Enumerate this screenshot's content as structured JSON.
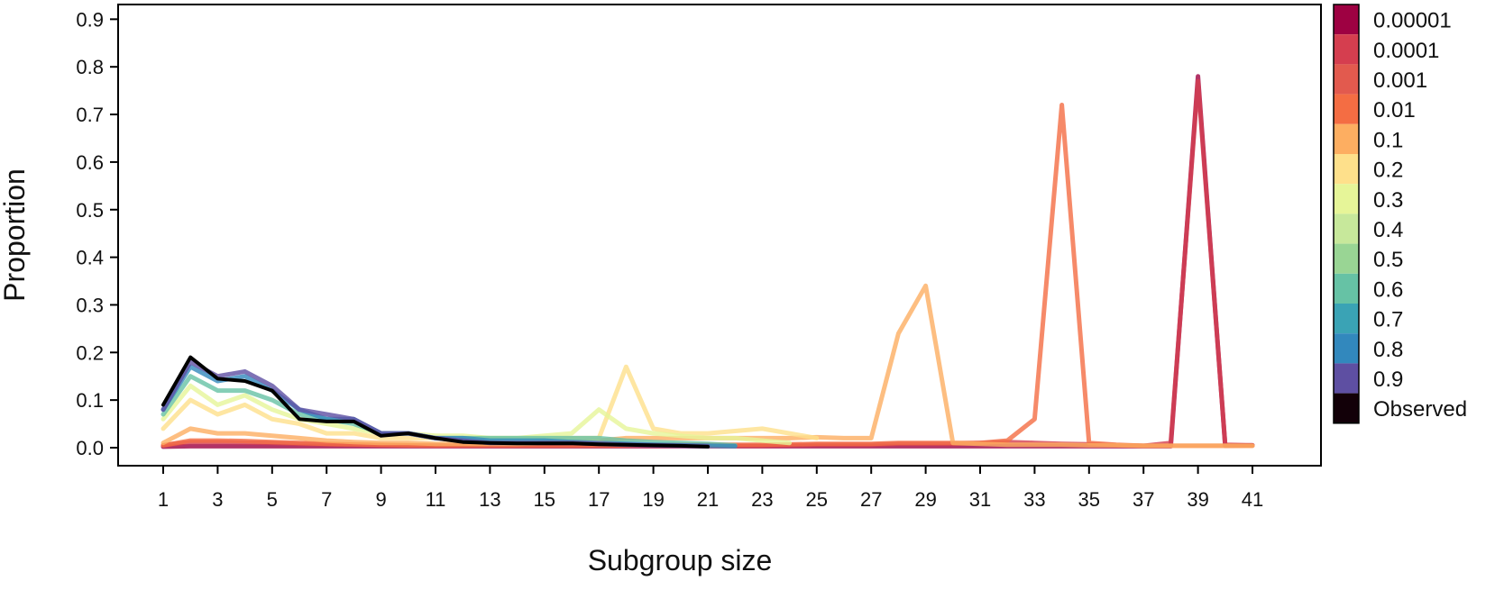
{
  "chart_data": {
    "type": "line",
    "xlabel": "Subgroup size",
    "ylabel": "Proportion",
    "xlim": [
      0,
      43
    ],
    "ylim": [
      0,
      0.9
    ],
    "x_ticks": [
      1,
      3,
      5,
      7,
      9,
      11,
      13,
      15,
      17,
      19,
      21,
      23,
      25,
      27,
      29,
      31,
      33,
      35,
      37,
      39,
      41
    ],
    "y_ticks": [
      "0.0",
      "0.1",
      "0.2",
      "0.3",
      "0.4",
      "0.5",
      "0.6",
      "0.7",
      "0.8",
      "0.9"
    ],
    "grid": false,
    "legend_position": "right",
    "series": [
      {
        "name": "0.00001",
        "color": "#9e0142",
        "x": [
          1,
          2,
          3,
          4,
          5,
          6,
          7,
          8,
          9,
          10,
          11,
          12,
          13,
          14,
          15,
          16,
          17,
          18,
          19,
          20,
          21,
          22,
          23,
          24,
          25,
          26,
          27,
          28,
          29,
          30,
          31,
          32,
          33,
          34,
          35,
          36,
          37,
          38,
          39,
          40,
          41
        ],
        "values": [
          0.002,
          0.003,
          0.003,
          0.003,
          0.003,
          0.003,
          0.003,
          0.003,
          0.003,
          0.003,
          0.003,
          0.003,
          0.003,
          0.003,
          0.003,
          0.003,
          0.003,
          0.003,
          0.003,
          0.003,
          0.003,
          0.003,
          0.003,
          0.003,
          0.003,
          0.003,
          0.003,
          0.003,
          0.003,
          0.003,
          0.003,
          0.003,
          0.003,
          0.003,
          0.003,
          0.003,
          0.003,
          0.003,
          0.78,
          0.004,
          0.005
        ]
      },
      {
        "name": "0.0001",
        "color": "#d53e4f",
        "x": [
          1,
          2,
          3,
          4,
          5,
          6,
          7,
          8,
          9,
          10,
          11,
          12,
          13,
          14,
          15,
          16,
          17,
          18,
          19,
          20,
          21,
          22,
          23,
          24,
          25,
          26,
          27,
          28,
          29,
          30,
          31,
          32,
          33,
          34,
          35,
          36,
          37,
          38,
          39,
          40,
          41
        ],
        "values": [
          0.005,
          0.012,
          0.012,
          0.011,
          0.01,
          0.008,
          0.007,
          0.006,
          0.005,
          0.005,
          0.004,
          0.004,
          0.004,
          0.004,
          0.004,
          0.004,
          0.004,
          0.004,
          0.004,
          0.004,
          0.004,
          0.004,
          0.004,
          0.005,
          0.006,
          0.006,
          0.006,
          0.008,
          0.008,
          0.008,
          0.01,
          0.012,
          0.01,
          0.008,
          0.007,
          0.005,
          0.004,
          0.01,
          0.77,
          0.006,
          0.005
        ]
      },
      {
        "name": "0.001",
        "color": "#f46d43",
        "x": [
          1,
          2,
          3,
          4,
          5,
          6,
          7,
          8,
          9,
          10,
          11,
          12,
          13,
          14,
          15,
          16,
          17,
          18,
          19,
          20,
          21,
          22,
          23,
          24,
          25,
          26,
          27,
          28,
          29,
          30,
          31,
          32,
          33,
          34,
          35,
          36,
          37,
          38,
          39,
          40,
          41
        ],
        "values": [
          0.005,
          0.015,
          0.015,
          0.014,
          0.012,
          0.01,
          0.008,
          0.007,
          0.006,
          0.005,
          0.005,
          0.005,
          0.005,
          0.005,
          0.005,
          0.005,
          0.005,
          0.005,
          0.006,
          0.006,
          0.006,
          0.006,
          0.006,
          0.007,
          0.008,
          0.008,
          0.008,
          0.01,
          0.01,
          0.01,
          0.01,
          0.015,
          0.06,
          0.72,
          0.01,
          0.006,
          0.004,
          0.004,
          0.004,
          0.004,
          0.004
        ]
      },
      {
        "name": "0.01",
        "color": "#fdae61",
        "x": [
          1,
          2,
          3,
          4,
          5,
          6,
          7,
          8,
          9,
          10,
          11,
          12,
          13,
          14,
          15,
          16,
          17,
          18,
          19,
          20,
          21,
          22,
          23,
          24,
          25,
          26,
          27,
          28,
          29,
          30,
          31,
          32,
          33,
          34,
          35,
          36,
          37,
          38,
          39,
          40,
          41
        ],
        "values": [
          0.01,
          0.04,
          0.03,
          0.03,
          0.025,
          0.02,
          0.015,
          0.012,
          0.01,
          0.01,
          0.008,
          0.008,
          0.008,
          0.008,
          0.01,
          0.012,
          0.015,
          0.02,
          0.02,
          0.02,
          0.02,
          0.02,
          0.02,
          0.02,
          0.022,
          0.02,
          0.02,
          0.24,
          0.34,
          0.01,
          0.008,
          0.006,
          0.006,
          0.006,
          0.005,
          0.005,
          0.004,
          0.004,
          0.004,
          0.004,
          0.004
        ]
      },
      {
        "name": "0.1",
        "color": "#fee08b",
        "x": [
          1,
          2,
          3,
          4,
          5,
          6,
          7,
          8,
          9,
          10,
          11,
          12,
          13,
          14,
          15,
          16,
          17,
          18,
          19,
          20,
          21,
          22,
          23,
          24,
          25
        ],
        "values": [
          0.04,
          0.1,
          0.07,
          0.09,
          0.06,
          0.05,
          0.03,
          0.03,
          0.02,
          0.02,
          0.02,
          0.02,
          0.02,
          0.02,
          0.02,
          0.02,
          0.02,
          0.17,
          0.04,
          0.03,
          0.03,
          0.035,
          0.04,
          0.03,
          0.02
        ]
      },
      {
        "name": "0.3",
        "color": "#e6f598",
        "x": [
          1,
          2,
          3,
          4,
          5,
          6,
          7,
          8,
          9,
          10,
          11,
          12,
          13,
          14,
          15,
          16,
          17,
          18,
          19,
          20,
          21,
          22,
          23,
          24
        ],
        "values": [
          0.06,
          0.13,
          0.09,
          0.11,
          0.08,
          0.06,
          0.05,
          0.04,
          0.03,
          0.03,
          0.025,
          0.025,
          0.02,
          0.02,
          0.025,
          0.03,
          0.08,
          0.04,
          0.03,
          0.025,
          0.02,
          0.02,
          0.015,
          0.01
        ]
      },
      {
        "name": "0.5",
        "color": "#66c2a5",
        "x": [
          1,
          2,
          3,
          4,
          5,
          6,
          7,
          8,
          9,
          10,
          11,
          12,
          13,
          14,
          15,
          16,
          17,
          18,
          19,
          20,
          21,
          22
        ],
        "values": [
          0.07,
          0.15,
          0.12,
          0.12,
          0.1,
          0.07,
          0.06,
          0.05,
          0.03,
          0.03,
          0.02,
          0.02,
          0.02,
          0.02,
          0.02,
          0.02,
          0.02,
          0.015,
          0.012,
          0.01,
          0.008,
          0.005
        ]
      },
      {
        "name": "0.7",
        "color": "#3288bd",
        "x": [
          1,
          2,
          3,
          4,
          5,
          6,
          7,
          8,
          9,
          10,
          11,
          12,
          13,
          14,
          15,
          16,
          17,
          18,
          19,
          20,
          21,
          22
        ],
        "values": [
          0.08,
          0.17,
          0.14,
          0.15,
          0.12,
          0.08,
          0.06,
          0.06,
          0.03,
          0.03,
          0.02,
          0.02,
          0.015,
          0.015,
          0.015,
          0.012,
          0.01,
          0.008,
          0.006,
          0.005,
          0.004,
          0.003
        ]
      },
      {
        "name": "0.9",
        "color": "#5e4fa2",
        "x": [
          1,
          2,
          3,
          4,
          5,
          6,
          7,
          8,
          9,
          10,
          11,
          12,
          13,
          14,
          15,
          16,
          17,
          18,
          19,
          20,
          21
        ],
        "values": [
          0.08,
          0.18,
          0.15,
          0.16,
          0.13,
          0.08,
          0.07,
          0.06,
          0.03,
          0.03,
          0.02,
          0.015,
          0.01,
          0.01,
          0.01,
          0.01,
          0.008,
          0.006,
          0.005,
          0.004,
          0.003
        ]
      },
      {
        "name": "Observed",
        "color": "#000000",
        "x": [
          1,
          2,
          3,
          4,
          5,
          6,
          7,
          8,
          9,
          10,
          11,
          12,
          13,
          14,
          15,
          16,
          17,
          18,
          19,
          20,
          21
        ],
        "values": [
          0.09,
          0.19,
          0.145,
          0.14,
          0.12,
          0.06,
          0.055,
          0.055,
          0.025,
          0.03,
          0.02,
          0.012,
          0.01,
          0.009,
          0.009,
          0.009,
          0.007,
          0.006,
          0.005,
          0.004,
          0.002
        ]
      }
    ],
    "legend": [
      {
        "label": "0.00001",
        "color": "#9e0142"
      },
      {
        "label": "0.0001",
        "color": "#d53e4f"
      },
      {
        "label": "0.001",
        "color": "#e25a4e"
      },
      {
        "label": "0.01",
        "color": "#f46d43"
      },
      {
        "label": "0.1",
        "color": "#fdae61"
      },
      {
        "label": "0.2",
        "color": "#fee08b"
      },
      {
        "label": "0.3",
        "color": "#e6f598"
      },
      {
        "label": "0.4",
        "color": "#c7e89b"
      },
      {
        "label": "0.5",
        "color": "#99d594"
      },
      {
        "label": "0.6",
        "color": "#66c2a5"
      },
      {
        "label": "0.7",
        "color": "#3aa3b5"
      },
      {
        "label": "0.8",
        "color": "#3288bd"
      },
      {
        "label": "0.9",
        "color": "#5e4fa2"
      },
      {
        "label": "Observed",
        "color": "#120008"
      }
    ]
  }
}
